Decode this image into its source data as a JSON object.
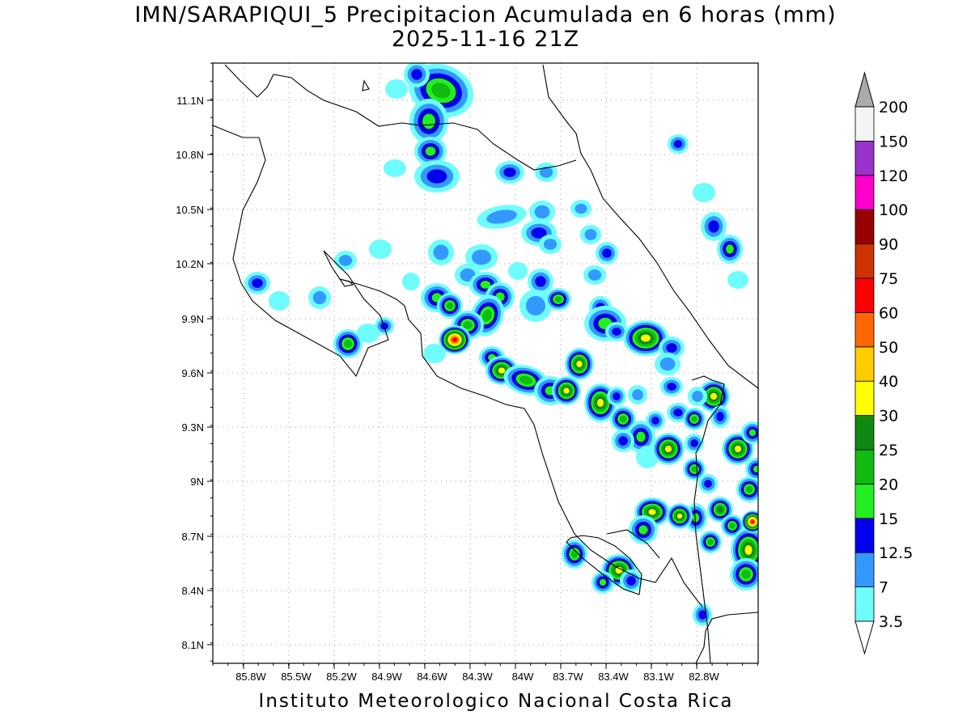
{
  "title": {
    "line1": "IMN/SARAPIQUI_5 Precipitacion Acumulada en 6 horas (mm)",
    "line2": "2025-11-16 21Z"
  },
  "credit": "Instituto Meteorologico Nacional Costa Rica",
  "map": {
    "lon_range": [
      -85.97,
      -82.53
    ],
    "lat_range": [
      8.02,
      11.34
    ],
    "lon_ticks": [
      "85.8W",
      "85.5W",
      "85.2W",
      "84.9W",
      "84.6W",
      "84.3W",
      "84W",
      "83.7W",
      "83.4W",
      "83.1W",
      "82.8W"
    ],
    "lat_ticks": [
      "11.1N",
      "10.8N",
      "10.5N",
      "10.2N",
      "9.9N",
      "9.6N",
      "9.3N",
      "9N",
      "8.7N",
      "8.4N",
      "8.1N"
    ],
    "grid": true
  },
  "colorbar": {
    "labels": [
      "3.5",
      "7",
      "12.5",
      "15",
      "20",
      "25",
      "30",
      "40",
      "50",
      "60",
      "75",
      "90",
      "100",
      "120",
      "150",
      "200"
    ],
    "colors": [
      "#6ffcfc",
      "#3399ff",
      "#0000ee",
      "#22ee22",
      "#11bb11",
      "#118811",
      "#ffff00",
      "#ffcc00",
      "#ff6600",
      "#ff0000",
      "#cc3300",
      "#990000",
      "#ff00cc",
      "#9933cc",
      "#f4f4f4",
      "#aaaaaa"
    ]
  }
}
